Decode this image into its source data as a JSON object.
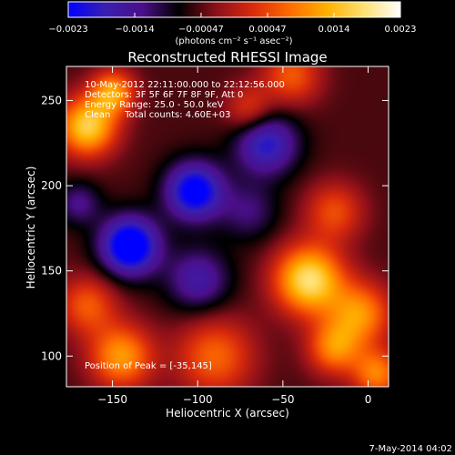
{
  "chart_data": {
    "type": "heatmap",
    "title": "Reconstructed RHESSI Image",
    "xlabel": "Heliocentric X (arcsec)",
    "ylabel": "Heliocentric Y (arcsec)",
    "xlim": [
      -177,
      12
    ],
    "ylim": [
      82,
      270
    ],
    "x_ticks": [
      {
        "value": -150,
        "label": "−150"
      },
      {
        "value": -100,
        "label": "−100"
      },
      {
        "value": -50,
        "label": "−50"
      },
      {
        "value": 0,
        "label": "0"
      }
    ],
    "y_ticks": [
      {
        "value": 100,
        "label": "100"
      },
      {
        "value": 150,
        "label": "150"
      },
      {
        "value": 200,
        "label": "200"
      },
      {
        "value": 250,
        "label": "250"
      }
    ],
    "colorbar": {
      "min": -0.0023,
      "max": 0.0023,
      "ticks": [
        "−0.0023",
        "−0.0014",
        "−0.00047",
        "0.00047",
        "0.0014",
        "0.0023"
      ],
      "units": "(photons cm⁻² s⁻¹ asec⁻²)",
      "colors": [
        "#0000ff",
        "#3a1fb0",
        "#4b0f8a",
        "#000000",
        "#8b0f1a",
        "#d92a0c",
        "#ff6a00",
        "#ffb000",
        "#ffe070",
        "#ffffff"
      ]
    },
    "sources": [
      {
        "x": -35,
        "y": 145,
        "sigma": 14,
        "amp": 0.0023
      },
      {
        "x": -165,
        "y": 235,
        "sigma": 12,
        "amp": 0.0021
      },
      {
        "x": -150,
        "y": 255,
        "sigma": 9,
        "amp": 0.0016
      },
      {
        "x": -5,
        "y": 125,
        "sigma": 13,
        "amp": 0.0015
      },
      {
        "x": -20,
        "y": 105,
        "sigma": 11,
        "amp": 0.0014
      },
      {
        "x": -90,
        "y": 100,
        "sigma": 16,
        "amp": 0.0012
      },
      {
        "x": -145,
        "y": 100,
        "sigma": 13,
        "amp": 0.0016
      },
      {
        "x": -165,
        "y": 130,
        "sigma": 12,
        "amp": 0.0011
      },
      {
        "x": -20,
        "y": 185,
        "sigma": 12,
        "amp": 0.001
      },
      {
        "x": -45,
        "y": 265,
        "sigma": 12,
        "amp": 0.0011
      },
      {
        "x": -70,
        "y": 245,
        "sigma": 10,
        "amp": 0.0009
      },
      {
        "x": 5,
        "y": 90,
        "sigma": 10,
        "amp": 0.0014
      },
      {
        "x": -140,
        "y": 165,
        "sigma": 12,
        "amp": -0.0023
      },
      {
        "x": -102,
        "y": 197,
        "sigma": 12,
        "amp": -0.002
      },
      {
        "x": -60,
        "y": 225,
        "sigma": 13,
        "amp": -0.0015
      },
      {
        "x": -100,
        "y": 145,
        "sigma": 13,
        "amp": -0.0011
      },
      {
        "x": -170,
        "y": 190,
        "sigma": 9,
        "amp": -0.0008
      },
      {
        "x": -70,
        "y": 185,
        "sigma": 12,
        "amp": -0.0007
      }
    ]
  },
  "annotations": {
    "time_range": "10-May-2012 22:11:00.000 to 22:12:56.000",
    "detectors": "Detectors: 3F 5F 6F 7F 8F 9F, Att 0",
    "energy_range": "Energy Range: 25.0 - 50.0 keV",
    "clean_counts": "Clean     Total counts: 4.60E+03",
    "peak_position": "Position of Peak = [-35,145]"
  },
  "footer_date": "7-May-2014 04:02"
}
